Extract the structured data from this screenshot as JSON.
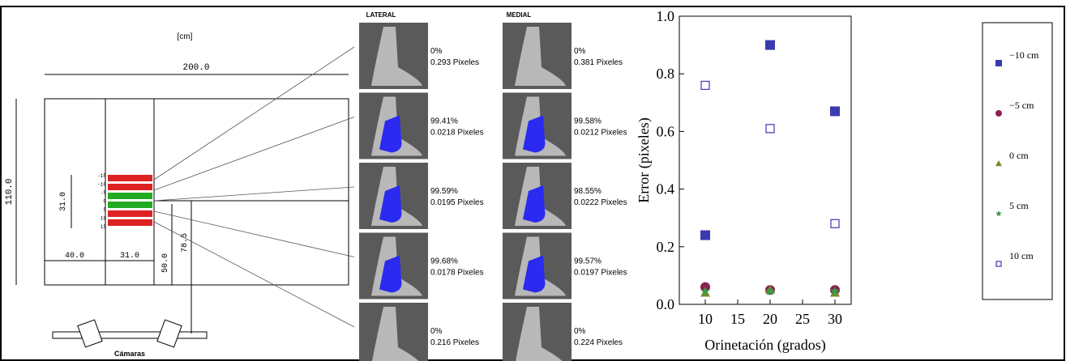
{
  "diagram": {
    "unit": "[cm]",
    "width": "200.0",
    "height": "110.0",
    "zone": "31.0",
    "left": "40.0",
    "band": "31.0",
    "dist1": "50.0",
    "dist2": "78.5",
    "cameras": "Cámaras",
    "offsets": [
      "-15",
      "-10",
      "-5",
      "0",
      "5",
      "10",
      "15"
    ]
  },
  "photos": {
    "lateral": "LATERAL",
    "medial": "MEDIAL",
    "rows": [
      {
        "lateral_pct": "0%",
        "lateral_px": "0.293 Pixeles",
        "medial_pct": "0%",
        "medial_px": "0.381 Pixeles"
      },
      {
        "lateral_pct": "99.41%",
        "lateral_px": "0.0218 Pixeles",
        "medial_pct": "99.58%",
        "medial_px": "0.0212 Pixeles"
      },
      {
        "lateral_pct": "99.59%",
        "lateral_px": "0.0195 Pixeles",
        "medial_pct": "98.55%",
        "medial_px": "0.0222 Pixeles"
      },
      {
        "lateral_pct": "99.68%",
        "lateral_px": "0.0178 Pixeles",
        "medial_pct": "99.57%",
        "medial_px": "0.0197 Pixeles"
      },
      {
        "lateral_pct": "0%",
        "lateral_px": "0.216 Pixeles",
        "medial_pct": "0%",
        "medial_px": "0.224 Pixeles"
      }
    ]
  },
  "chart_data": {
    "type": "scatter",
    "x_label": "Orinetación (grados)",
    "y_label": "Error (pixeles)",
    "xlim": [
      6,
      32.5
    ],
    "ylim": [
      0,
      1
    ],
    "xticks": [
      10,
      15,
      20,
      25,
      30
    ],
    "yticks": [
      {
        "value": 0,
        "label": "0.0"
      },
      0.2,
      0.4,
      0.6,
      0.8,
      {
        "value": 1,
        "label": "1.0"
      }
    ],
    "series": [
      {
        "name": "−10 cm",
        "color": "#3a3ab0",
        "marker": "square",
        "x": [
          10,
          20,
          30
        ],
        "values": [
          0.24,
          0.9,
          0.67
        ]
      },
      {
        "name": "−5 cm",
        "color": "#8b2252",
        "marker": "circle",
        "x": [
          10,
          20,
          30
        ],
        "values": [
          0.06,
          0.05,
          0.05
        ]
      },
      {
        "name": "0 cm",
        "color": "#7a8a2a",
        "marker": "triangle",
        "x": [
          10,
          20,
          30
        ],
        "values": [
          0.04,
          0.05,
          0.04
        ]
      },
      {
        "name": "5 cm",
        "color": "#3a9a4a",
        "marker": "star",
        "x": [
          10,
          20,
          30
        ],
        "values": [
          0.045,
          0.045,
          0.045
        ]
      },
      {
        "name": "10 cm",
        "color": "#3a3ab0",
        "marker": "square-open",
        "x": [
          10,
          20,
          30
        ],
        "values": [
          0.76,
          0.61,
          0.28
        ]
      }
    ]
  }
}
